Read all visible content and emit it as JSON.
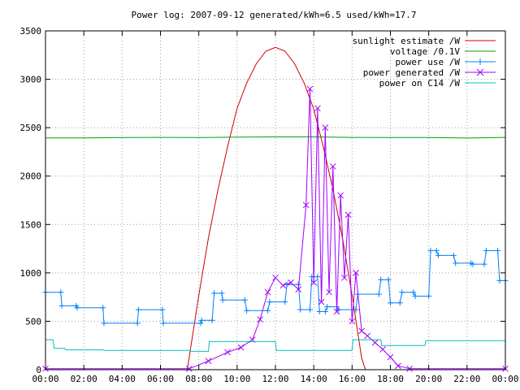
{
  "chart_data": {
    "type": "line",
    "title": "Power log: 2007-09-12 generated/kWh=6.5 used/kWh=17.7",
    "xlabel": "",
    "ylabel": "",
    "xlim": [
      0,
      24
    ],
    "ylim": [
      0,
      3500
    ],
    "grid": true,
    "legend_position": "top-right",
    "x_ticks": [
      "00:00",
      "02:00",
      "04:00",
      "06:00",
      "08:00",
      "10:00",
      "12:00",
      "14:00",
      "16:00",
      "18:00",
      "20:00",
      "22:00",
      "00:00"
    ],
    "y_ticks": [
      0,
      500,
      1000,
      1500,
      2000,
      2500,
      3000,
      3500
    ],
    "series": [
      {
        "name": "sunlight estimate /W",
        "color": "#cc0000",
        "marker": "none",
        "x": [
          7.4,
          8,
          8.5,
          9,
          9.5,
          10,
          10.5,
          11,
          11.5,
          12,
          12.5,
          13,
          13.5,
          14,
          14.5,
          15,
          15.5,
          16,
          16.5,
          16.7
        ],
        "y": [
          0,
          770,
          1360,
          1860,
          2300,
          2700,
          2960,
          3160,
          3290,
          3330,
          3290,
          3160,
          2960,
          2690,
          2300,
          1860,
          1360,
          770,
          120,
          0
        ]
      },
      {
        "name": "voltage /0.1V",
        "color": "#00a000",
        "marker": "none",
        "x": [
          0,
          2,
          4,
          6,
          8,
          10,
          12,
          14,
          16,
          18,
          20,
          22,
          24
        ],
        "y": [
          2395,
          2395,
          2398,
          2400,
          2398,
          2402,
          2405,
          2405,
          2400,
          2398,
          2398,
          2393,
          2400
        ]
      },
      {
        "name": "power use /W",
        "color": "#0080ff",
        "marker": "plus",
        "x": [
          0,
          0.8,
          0.85,
          1.6,
          1.65,
          3.0,
          3.05,
          4.8,
          4.85,
          6.1,
          6.15,
          8.1,
          8.15,
          8.7,
          8.8,
          9.2,
          9.25,
          10.4,
          10.5,
          11.6,
          11.7,
          12.5,
          12.6,
          13.2,
          13.3,
          13.8,
          13.9,
          14.2,
          14.3,
          14.6,
          14.7,
          15.2,
          15.3,
          16.2,
          16.3,
          17.4,
          17.5,
          17.9,
          18.0,
          18.5,
          18.6,
          19.2,
          19.3,
          20.0,
          20.1,
          20.4,
          20.5,
          21.3,
          21.4,
          22.2,
          22.3,
          22.9,
          23.0,
          23.6,
          23.7,
          24
        ],
        "y": [
          800,
          800,
          660,
          660,
          640,
          640,
          480,
          480,
          620,
          620,
          480,
          480,
          510,
          510,
          790,
          790,
          720,
          720,
          610,
          610,
          700,
          700,
          880,
          880,
          620,
          620,
          960,
          960,
          600,
          600,
          650,
          650,
          620,
          620,
          780,
          780,
          930,
          930,
          690,
          690,
          800,
          800,
          760,
          760,
          1230,
          1230,
          1180,
          1180,
          1100,
          1100,
          1090,
          1090,
          1230,
          1230,
          920,
          920
        ]
      },
      {
        "name": "power generated /W",
        "color": "#a000ff",
        "marker": "x",
        "x": [
          0,
          7.5,
          8.5,
          9.5,
          10.2,
          10.8,
          11.2,
          11.6,
          12.0,
          12.4,
          12.8,
          13.2,
          13.6,
          13.8,
          14.0,
          14.2,
          14.4,
          14.6,
          14.8,
          15.0,
          15.2,
          15.4,
          15.6,
          15.8,
          16.0,
          16.2,
          16.5,
          16.8,
          17.2,
          17.6,
          18.0,
          18.4,
          19.0,
          24
        ],
        "y": [
          10,
          10,
          90,
          180,
          230,
          310,
          520,
          800,
          950,
          870,
          900,
          830,
          1700,
          2900,
          900,
          2700,
          700,
          2500,
          800,
          2100,
          600,
          1800,
          950,
          1600,
          500,
          1000,
          400,
          350,
          280,
          210,
          130,
          40,
          10,
          10
        ]
      },
      {
        "name": "power on C14 /W",
        "color": "#00c0c0",
        "marker": "none",
        "x": [
          0,
          0.4,
          0.45,
          1.0,
          1.05,
          3.0,
          3.05,
          7.5,
          7.55,
          8.5,
          8.55,
          12.0,
          12.05,
          16.0,
          16.05,
          17.5,
          17.55,
          19.8,
          19.85,
          24
        ],
        "y": [
          310,
          310,
          220,
          220,
          205,
          205,
          200,
          200,
          190,
          190,
          290,
          290,
          200,
          200,
          310,
          310,
          250,
          250,
          300,
          300
        ]
      }
    ]
  }
}
